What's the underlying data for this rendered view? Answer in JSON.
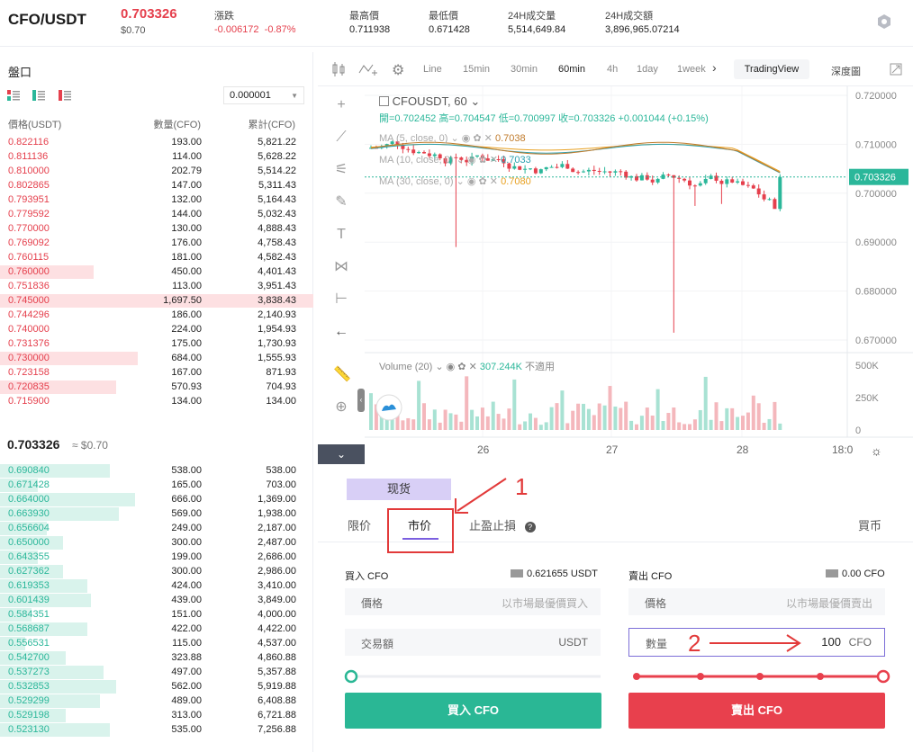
{
  "header": {
    "pair": "CFO/USDT",
    "last_price": "0.703326",
    "last_usd": "$0.70",
    "change_label": "漲跌",
    "change_value": "-0.006172",
    "change_pct": "-0.87%",
    "high_label": "最高價",
    "high_value": "0.711938",
    "low_label": "最低價",
    "low_value": "0.671428",
    "vol_label": "24H成交量",
    "vol_value": "5,514,649.84",
    "turnover_label": "24H成交額",
    "turnover_value": "3,896,965.07214",
    "settings_icon": "hexagon-settings-icon"
  },
  "orderbook": {
    "title": "盤口",
    "precision": "0.000001",
    "col_price": "價格(USDT)",
    "col_qty": "數量(CFO)",
    "col_cum": "累計(CFO)",
    "asks": [
      {
        "p": "0.822116",
        "q": "193.00",
        "c": "5,821.22",
        "depth": 0.0
      },
      {
        "p": "0.811136",
        "q": "114.00",
        "c": "5,628.22",
        "depth": 0.0
      },
      {
        "p": "0.810000",
        "q": "202.79",
        "c": "5,514.22",
        "depth": 0.0
      },
      {
        "p": "0.802865",
        "q": "147.00",
        "c": "5,311.43",
        "depth": 0.0
      },
      {
        "p": "0.793951",
        "q": "132.00",
        "c": "5,164.43",
        "depth": 0.0
      },
      {
        "p": "0.779592",
        "q": "144.00",
        "c": "5,032.43",
        "depth": 0.0
      },
      {
        "p": "0.770000",
        "q": "130.00",
        "c": "4,888.43",
        "depth": 0.0
      },
      {
        "p": "0.769092",
        "q": "176.00",
        "c": "4,758.43",
        "depth": 0.0
      },
      {
        "p": "0.760115",
        "q": "181.00",
        "c": "4,582.43",
        "depth": 0.0
      },
      {
        "p": "0.760000",
        "q": "450.00",
        "c": "4,401.43",
        "depth": 0.3
      },
      {
        "p": "0.751836",
        "q": "113.00",
        "c": "3,951.43",
        "depth": 0.0
      },
      {
        "p": "0.745000",
        "q": "1,697.50",
        "c": "3,838.43",
        "depth": 1.0
      },
      {
        "p": "0.744296",
        "q": "186.00",
        "c": "2,140.93",
        "depth": 0.0
      },
      {
        "p": "0.740000",
        "q": "224.00",
        "c": "1,954.93",
        "depth": 0.0
      },
      {
        "p": "0.731376",
        "q": "175.00",
        "c": "1,730.93",
        "depth": 0.0
      },
      {
        "p": "0.730000",
        "q": "684.00",
        "c": "1,555.93",
        "depth": 0.44
      },
      {
        "p": "0.723158",
        "q": "167.00",
        "c": "871.93",
        "depth": 0.0
      },
      {
        "p": "0.720835",
        "q": "570.93",
        "c": "704.93",
        "depth": 0.37
      },
      {
        "p": "0.715900",
        "q": "134.00",
        "c": "134.00",
        "depth": 0.0
      }
    ],
    "mid_price": "0.703326",
    "mid_usd": "≈ $0.70",
    "bids": [
      {
        "p": "0.690840",
        "q": "538.00",
        "c": "538.00",
        "depth": 0.35
      },
      {
        "p": "0.671428",
        "q": "165.00",
        "c": "703.00",
        "depth": 0.12
      },
      {
        "p": "0.664000",
        "q": "666.00",
        "c": "1,369.00",
        "depth": 0.43
      },
      {
        "p": "0.663930",
        "q": "569.00",
        "c": "1,938.00",
        "depth": 0.38
      },
      {
        "p": "0.656604",
        "q": "249.00",
        "c": "2,187.00",
        "depth": 0.15
      },
      {
        "p": "0.650000",
        "q": "300.00",
        "c": "2,487.00",
        "depth": 0.2
      },
      {
        "p": "0.643355",
        "q": "199.00",
        "c": "2,686.00",
        "depth": 0.12
      },
      {
        "p": "0.627362",
        "q": "300.00",
        "c": "2,986.00",
        "depth": 0.2
      },
      {
        "p": "0.619353",
        "q": "424.00",
        "c": "3,410.00",
        "depth": 0.28
      },
      {
        "p": "0.601439",
        "q": "439.00",
        "c": "3,849.00",
        "depth": 0.29
      },
      {
        "p": "0.584351",
        "q": "151.00",
        "c": "4,000.00",
        "depth": 0.1
      },
      {
        "p": "0.568687",
        "q": "422.00",
        "c": "4,422.00",
        "depth": 0.28
      },
      {
        "p": "0.556531",
        "q": "115.00",
        "c": "4,537.00",
        "depth": 0.08
      },
      {
        "p": "0.542700",
        "q": "323.88",
        "c": "4,860.88",
        "depth": 0.21
      },
      {
        "p": "0.537273",
        "q": "497.00",
        "c": "5,357.88",
        "depth": 0.33
      },
      {
        "p": "0.532853",
        "q": "562.00",
        "c": "5,919.88",
        "depth": 0.37
      },
      {
        "p": "0.529299",
        "q": "489.00",
        "c": "6,408.88",
        "depth": 0.32
      },
      {
        "p": "0.529198",
        "q": "313.00",
        "c": "6,721.88",
        "depth": 0.21
      },
      {
        "p": "0.523130",
        "q": "535.00",
        "c": "7,256.88",
        "depth": 0.35
      }
    ]
  },
  "chart": {
    "toolbar": [
      "Line",
      "15min",
      "30min",
      "60min",
      "4h",
      "1day",
      "1week"
    ],
    "active_interval": "60min",
    "tradingview": "TradingView",
    "depth": "深度圖",
    "symbol": "CFOUSDT, 60",
    "ohlc": "開=0.702452  高=0.704547  低=0.700997  收=0.703326  +0.001044 (+0.15%)",
    "ma5": "MA (5, close, 0)",
    "ma5_val": "0.7038",
    "ma10": "MA (10, close, 0)",
    "ma10_val": "0.7033",
    "ma30": "MA (30, close, 0)",
    "ma30_val": "0.7080",
    "volume_label": "Volume (20)",
    "volume_val": "307.244K",
    "volume_na": "不適用",
    "price_ticks": [
      "0.720000",
      "0.710000",
      "0.700000",
      "0.690000",
      "0.680000",
      "0.670000"
    ],
    "price_tick_values": [
      0.72,
      0.71,
      0.7,
      0.69,
      0.68,
      0.67
    ],
    "vol_ticks": [
      "500K",
      "250K",
      "0"
    ],
    "current_price_tag": "0.703326",
    "x_ticks": [
      "26",
      "27",
      "28",
      "18:0"
    ]
  },
  "trade": {
    "spot_tab": "现货",
    "tab_limit": "限价",
    "tab_market": "市价",
    "tab_stop": "止盈止損",
    "buy_coin": "買币",
    "buy_title": "買入 CFO",
    "buy_balance": "0.621655 USDT",
    "buy_price_label": "價格",
    "buy_price_ph": "以市場最優價買入",
    "buy_amount_label": "交易額",
    "buy_amount_unit": "USDT",
    "buy_btn": "買入 CFO",
    "sell_title": "賣出 CFO",
    "sell_balance": "0.00 CFO",
    "sell_price_label": "價格",
    "sell_price_ph": "以市場最優價賣出",
    "sell_qty_label": "數量",
    "sell_qty_value": "100",
    "sell_qty_unit": "CFO",
    "sell_btn": "賣出 CFO",
    "annot1": "1",
    "annot2": "2"
  },
  "colors": {
    "red": "#e5404d",
    "green": "#2bb79a",
    "ask_depth": "#fde0e2",
    "bid_depth": "#d9f3ec",
    "accent": "#7b5fe0"
  }
}
